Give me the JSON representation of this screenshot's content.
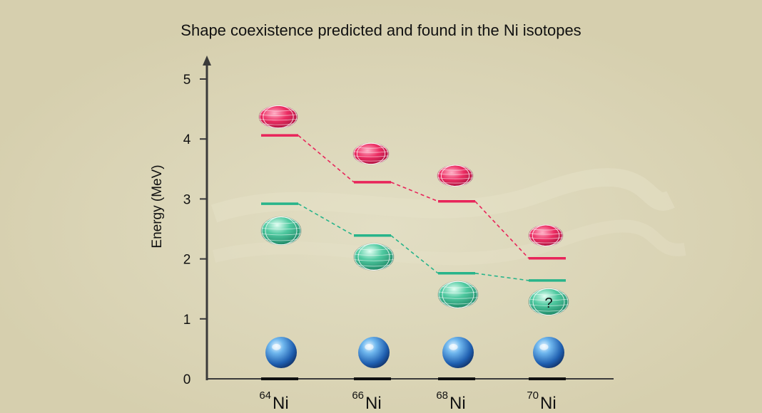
{
  "title": "Shape coexistence predicted and found in the Ni isotopes",
  "y_axis": {
    "label": "Energy (MeV)",
    "ticks": [
      "0",
      "1",
      "2",
      "3",
      "4",
      "5"
    ],
    "range": [
      0,
      5.4
    ]
  },
  "isotopes": [
    {
      "mass": "64",
      "element": "Ni",
      "ground": 0,
      "oblate": 2.92,
      "prolate": 4.06
    },
    {
      "mass": "66",
      "element": "Ni",
      "ground": 0,
      "oblate": 2.39,
      "prolate": 3.28
    },
    {
      "mass": "68",
      "element": "Ni",
      "ground": 0,
      "oblate": 1.76,
      "prolate": 2.96
    },
    {
      "mass": "70",
      "element": "Ni",
      "ground": 0,
      "oblate": 1.64,
      "prolate": 2.01
    }
  ],
  "unknown_marker": "?",
  "colors": {
    "background": "#d8d2b3",
    "prolate": "#e8245a",
    "oblate": "#27b48a",
    "spherical": "#2a7fc9",
    "ground_level": "#111111",
    "axis": "#3a3a3a"
  },
  "shape_icons": {
    "prolate": "red-prolate-nucleus-icon",
    "oblate": "green-oblate-nucleus-icon",
    "spherical": "blue-spherical-nucleus-icon"
  }
}
